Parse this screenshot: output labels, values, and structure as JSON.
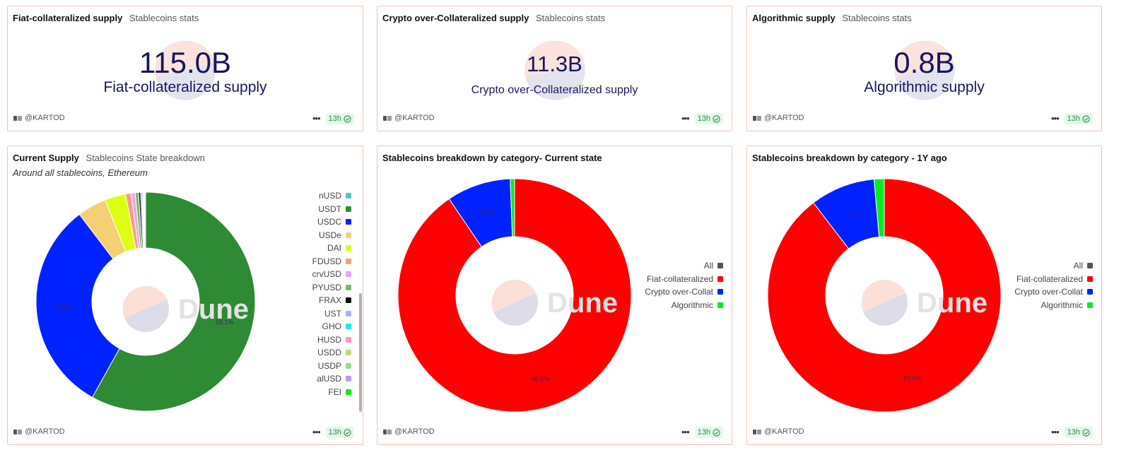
{
  "colors": {
    "fiat": "#ff0000",
    "crypto": "#0022ff",
    "algo": "#00ee22",
    "all": "#555555",
    "value_text": "#17165c"
  },
  "counters": [
    {
      "title": "Fiat-collateralized supply",
      "subtitle": "Stablecoins stats",
      "value": "115.0B",
      "label": "Fiat-collateralized supply",
      "author": "@KARTOD",
      "age": "13h"
    },
    {
      "title": "Crypto over-Collateralized supply",
      "subtitle": "Stablecoins stats",
      "value": "11.3B",
      "label": "Crypto over-Collateralized supply",
      "author": "@KARTOD",
      "age": "13h"
    },
    {
      "title": "Algorithmic supply",
      "subtitle": "Stablecoins stats",
      "value": "0.8B",
      "label": "Algorithmic supply",
      "author": "@KARTOD",
      "age": "13h"
    }
  ],
  "current_supply": {
    "title": "Current Supply",
    "subtitle": "Stablecoins State breakdown",
    "description": "Around all stablecoins, Ethereum",
    "watermark": "Dune",
    "author": "@KARTOD",
    "age": "13h"
  },
  "category_now": {
    "title": "Stablecoins breakdown by category- Current state",
    "watermark": "Dune",
    "author": "@KARTOD",
    "age": "13h"
  },
  "category_1y": {
    "title": "Stablecoins breakdown by category - 1Y ago",
    "watermark": "Dune",
    "author": "@KARTOD",
    "age": "13h"
  },
  "chart_data": [
    {
      "type": "pie",
      "variant": "donut",
      "title": "Current Supply",
      "subtitle": "Stablecoins State breakdown",
      "legend_position": "right",
      "slices": [
        {
          "label": "USDT",
          "value": 58.1,
          "color": "#2f8a36",
          "show_label": true
        },
        {
          "label": "USDC",
          "value": 31.6,
          "color": "#0022ff",
          "show_label": true
        },
        {
          "label": "USDe",
          "value": 4.3,
          "color": "#f5cf73",
          "show_label": false
        },
        {
          "label": "DAI",
          "value": 3.1,
          "color": "#dcff14",
          "show_label": false
        },
        {
          "label": "FDUSD",
          "value": 0.8,
          "color": "#f4a07c",
          "show_label": false
        },
        {
          "label": "crvUSD",
          "value": 0.6,
          "color": "#e3a8f0",
          "show_label": false
        },
        {
          "label": "PYUSD",
          "value": 0.5,
          "color": "#7fb86a",
          "show_label": false
        },
        {
          "label": "FRAX",
          "value": 0.3,
          "color": "#111111",
          "show_label": false
        },
        {
          "label": "UST",
          "value": 0.2,
          "color": "#a2b8ec",
          "show_label": false
        },
        {
          "label": "GHO",
          "value": 0.15,
          "color": "#22e5ee",
          "show_label": false
        },
        {
          "label": "HUSD",
          "value": 0.1,
          "color": "#f59ac3",
          "show_label": false
        },
        {
          "label": "USDD",
          "value": 0.1,
          "color": "#c6d67a",
          "show_label": false
        },
        {
          "label": "USDP",
          "value": 0.08,
          "color": "#8fdaa0",
          "show_label": false
        },
        {
          "label": "alUSD",
          "value": 0.05,
          "color": "#b59cf0",
          "show_label": false
        },
        {
          "label": "FEI",
          "value": 0.05,
          "color": "#00ee22",
          "show_label": false
        }
      ],
      "legend": [
        {
          "label": "nUSD",
          "color": "#5fc0c8"
        },
        {
          "label": "USDT",
          "color": "#2f8a36"
        },
        {
          "label": "USDC",
          "color": "#0022ff"
        },
        {
          "label": "USDe",
          "color": "#f5cf73"
        },
        {
          "label": "DAI",
          "color": "#dcff14"
        },
        {
          "label": "FDUSD",
          "color": "#f4a07c"
        },
        {
          "label": "crvUSD",
          "color": "#e3a8f0"
        },
        {
          "label": "PYUSD",
          "color": "#7fb86a"
        },
        {
          "label": "FRAX",
          "color": "#111111"
        },
        {
          "label": "UST",
          "color": "#a2b8ec"
        },
        {
          "label": "GHO",
          "color": "#22e5ee"
        },
        {
          "label": "HUSD",
          "color": "#f59ac3"
        },
        {
          "label": "USDD",
          "color": "#c6d67a"
        },
        {
          "label": "USDP",
          "color": "#8fdaa0"
        },
        {
          "label": "alUSD",
          "color": "#b59cf0"
        },
        {
          "label": "FEI",
          "color": "#00ee22"
        }
      ]
    },
    {
      "type": "pie",
      "variant": "donut",
      "title": "Stablecoins breakdown by category- Current state",
      "legend_position": "right",
      "slices": [
        {
          "label": "Fiat-collateralized",
          "value": 90.5,
          "color": "#ff0000",
          "show_label": true
        },
        {
          "label": "Crypto over-Collat",
          "value": 8.9,
          "color": "#0022ff",
          "show_label": true
        },
        {
          "label": "Algorithmic",
          "value": 0.6,
          "color": "#00ee22",
          "show_label": false
        }
      ],
      "slice_labels": [
        "90.5%",
        "8.9%"
      ],
      "legend": [
        {
          "label": "All",
          "color": "#555555"
        },
        {
          "label": "Fiat-collateralized",
          "color": "#ff0000"
        },
        {
          "label": "Crypto over-Collat",
          "color": "#0022ff"
        },
        {
          "label": "Algorithmic",
          "color": "#00ee22"
        }
      ]
    },
    {
      "type": "pie",
      "variant": "donut",
      "title": "Stablecoins breakdown by category - 1Y ago",
      "legend_position": "right",
      "slices": [
        {
          "label": "Fiat-collateralized",
          "value": 89.6,
          "color": "#ff0000",
          "show_label": true
        },
        {
          "label": "Crypto over-Collat",
          "value": 9.0,
          "color": "#0022ff",
          "show_label": true
        },
        {
          "label": "Algorithmic",
          "value": 1.4,
          "color": "#00ee22",
          "show_label": false
        }
      ],
      "slice_labels": [
        "89.6%",
        "9.0%"
      ],
      "legend": [
        {
          "label": "All",
          "color": "#555555"
        },
        {
          "label": "Fiat-collateralized",
          "color": "#ff0000"
        },
        {
          "label": "Crypto over-Collat",
          "color": "#0022ff"
        },
        {
          "label": "Algorithmic",
          "color": "#00ee22"
        }
      ]
    }
  ]
}
